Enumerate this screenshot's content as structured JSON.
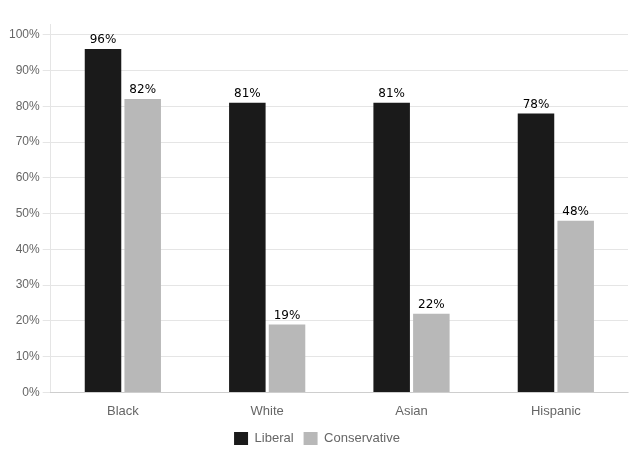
{
  "chart_data": {
    "type": "bar",
    "categories": [
      "Black",
      "White",
      "Asian",
      "Hispanic"
    ],
    "series": [
      {
        "name": "Liberal",
        "color": "#1a1a1a",
        "values": [
          96,
          81,
          81,
          78
        ],
        "value_labels": [
          "96%",
          "81%",
          "81%",
          "78%"
        ]
      },
      {
        "name": "Conservative",
        "color": "#b8b8b8",
        "values": [
          82,
          19,
          22,
          48
        ],
        "value_labels": [
          "82%",
          "19%",
          "22%",
          "48%"
        ]
      }
    ],
    "ylim": [
      0,
      103
    ],
    "yticks": [
      {
        "value": 0,
        "label": "0%"
      },
      {
        "value": 10,
        "label": "10%"
      },
      {
        "value": 20,
        "label": "20%"
      },
      {
        "value": 30,
        "label": "30%"
      },
      {
        "value": 40,
        "label": "40%"
      },
      {
        "value": 50,
        "label": "50%"
      },
      {
        "value": 60,
        "label": "60%"
      },
      {
        "value": 70,
        "label": "70%"
      },
      {
        "value": 80,
        "label": "80%"
      },
      {
        "value": 90,
        "label": "90%"
      },
      {
        "value": 100,
        "label": "100%"
      }
    ],
    "grid": true,
    "legend": "bottom",
    "data_labels": true
  }
}
